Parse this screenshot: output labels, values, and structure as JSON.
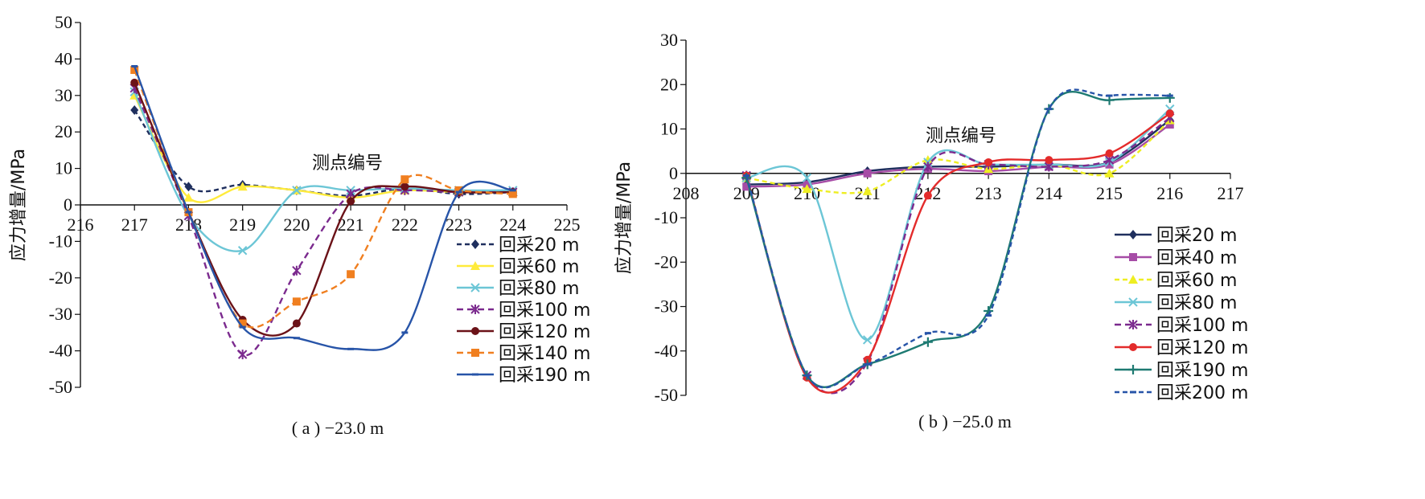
{
  "chart_data": [
    {
      "type": "line",
      "panel": "a",
      "caption": "( a ) −23.0 m",
      "ylabel": "应力增量/MPa",
      "xlabel": "测点编号",
      "xlim": [
        216,
        225
      ],
      "ylim": [
        -50,
        50
      ],
      "x_ticks": [
        216,
        217,
        218,
        219,
        220,
        221,
        222,
        223,
        224,
        225
      ],
      "y_ticks": [
        50,
        40,
        30,
        20,
        10,
        0,
        -10,
        -20,
        -30,
        -40,
        -50
      ],
      "x": [
        217,
        218,
        219,
        220,
        221,
        222,
        223,
        224
      ],
      "series": [
        {
          "name": "回采20 m",
          "color": "#1f2f5e",
          "dash": "6,4",
          "marker": "diamond",
          "values": [
            26,
            5,
            5.5,
            4,
            2.5,
            4.5,
            3,
            3.5
          ]
        },
        {
          "name": "回采60 m",
          "color": "#ffeb3b",
          "dash": "",
          "marker": "triangle",
          "values": [
            30,
            2,
            5,
            4,
            2,
            4,
            3.5,
            3.5
          ]
        },
        {
          "name": "回采80 m",
          "color": "#6cc6d6",
          "dash": "",
          "marker": "x",
          "values": [
            31,
            -3,
            -12.5,
            4,
            4,
            4.5,
            4,
            4
          ]
        },
        {
          "name": "回采100 m",
          "color": "#7b2a8e",
          "dash": "8,5",
          "marker": "star",
          "values": [
            32,
            -3,
            -41,
            -18,
            3,
            4,
            3.5,
            3.5
          ]
        },
        {
          "name": "回采120 m",
          "color": "#6b1218",
          "dash": "",
          "marker": "circle",
          "values": [
            33.5,
            -2,
            -31.5,
            -32.5,
            1,
            5,
            3.5,
            3.5
          ]
        },
        {
          "name": "回采140 m",
          "color": "#f07f20",
          "dash": "8,5",
          "marker": "square",
          "values": [
            37,
            -2,
            -32.5,
            -26.5,
            -19,
            7,
            4,
            3
          ]
        },
        {
          "name": "回采190 m",
          "color": "#2754a8",
          "dash": "",
          "marker": "dash",
          "values": [
            38,
            -2,
            -33.5,
            -36.5,
            -39.5,
            -35,
            3.5,
            4
          ]
        }
      ]
    },
    {
      "type": "line",
      "panel": "b",
      "caption": "( b ) −25.0 m",
      "ylabel": "应力增量/MPa",
      "xlabel": "测点编号",
      "xlim": [
        208,
        217
      ],
      "ylim": [
        -50,
        30
      ],
      "x_ticks": [
        208,
        209,
        210,
        211,
        212,
        213,
        214,
        215,
        216,
        217
      ],
      "y_ticks": [
        30,
        20,
        10,
        0,
        -10,
        -20,
        -30,
        -40,
        -50
      ],
      "x": [
        209,
        210,
        211,
        212,
        213,
        214,
        215,
        216
      ],
      "series": [
        {
          "name": "回采20 m",
          "color": "#1f2f5e",
          "dash": "",
          "marker": "diamond",
          "values": [
            -2.5,
            -2,
            0.5,
            1.5,
            1.5,
            2,
            2.5,
            12
          ]
        },
        {
          "name": "回采40 m",
          "color": "#a64ca6",
          "dash": "",
          "marker": "square",
          "values": [
            -3,
            -2.5,
            0,
            1,
            0.5,
            1.5,
            2,
            11
          ]
        },
        {
          "name": "回采60 m",
          "color": "#eeee22",
          "dash": "6,4",
          "marker": "triangle",
          "values": [
            -1,
            -3.5,
            -4,
            3,
            1,
            2,
            0,
            12
          ]
        },
        {
          "name": "回采80 m",
          "color": "#6cc6d6",
          "dash": "",
          "marker": "x",
          "values": [
            -1,
            -1,
            -37.5,
            2.5,
            2,
            2,
            2.5,
            14.5
          ]
        },
        {
          "name": "回采100 m",
          "color": "#7b2a8e",
          "dash": "8,5",
          "marker": "star",
          "values": [
            -0.5,
            -45.5,
            -42.5,
            1.5,
            2,
            1.5,
            3,
            12.5
          ]
        },
        {
          "name": "回采120 m",
          "color": "#e32b2b",
          "dash": "",
          "marker": "circle",
          "values": [
            -0.5,
            -46,
            -42,
            -5,
            2.5,
            3,
            4.5,
            13.5
          ]
        },
        {
          "name": "回采190 m",
          "color": "#1e7a72",
          "dash": "",
          "marker": "plus",
          "values": [
            -1,
            -45.5,
            -43,
            -38,
            -31,
            14.5,
            16.5,
            17
          ]
        },
        {
          "name": "回采200 m",
          "color": "#2754a8",
          "dash": "6,4",
          "marker": "dash",
          "values": [
            -0.5,
            -45.5,
            -43,
            -36,
            -32,
            14.5,
            17.5,
            17.5
          ]
        }
      ]
    }
  ]
}
